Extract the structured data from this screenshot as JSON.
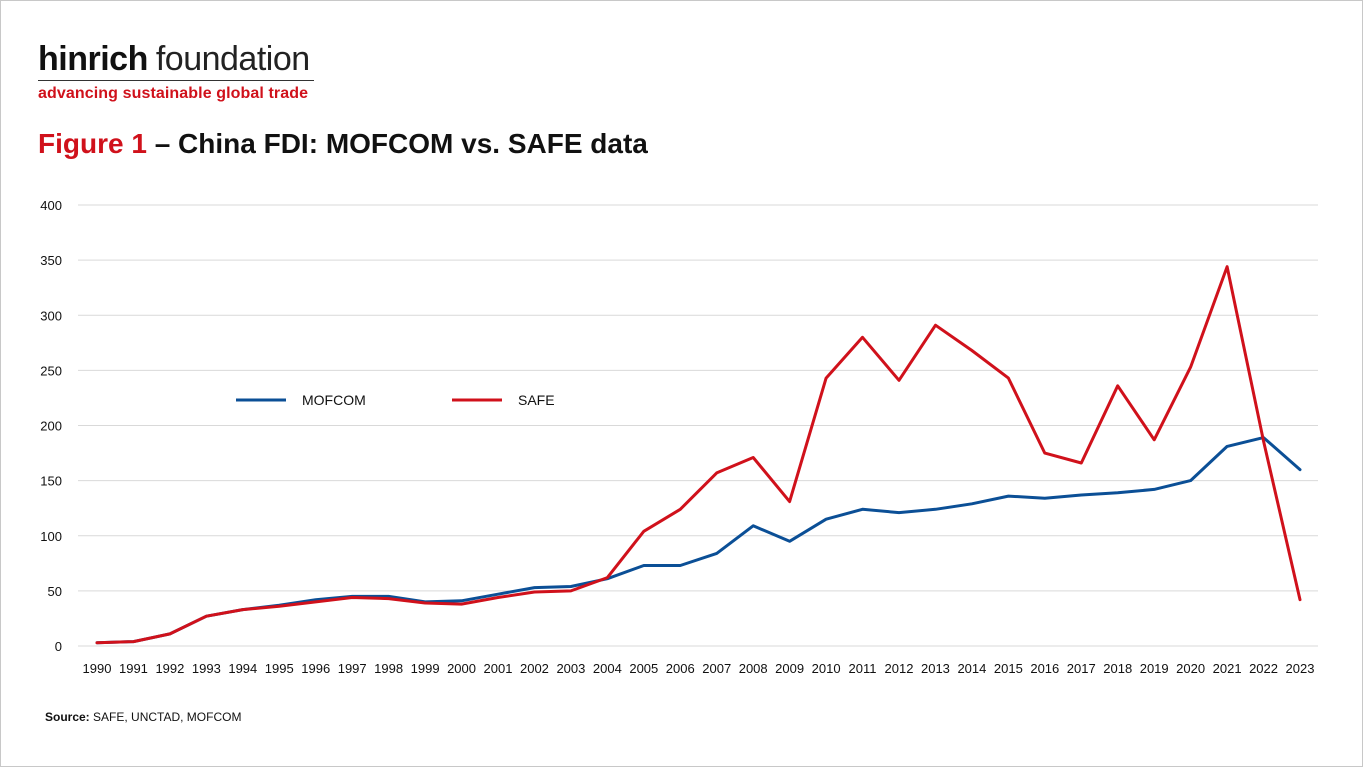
{
  "brand": {
    "name_bold": "hinrich",
    "name_light": "foundation",
    "tagline": "advancing sustainable global trade"
  },
  "figure": {
    "label": "Figure 1",
    "title": " – China FDI: MOFCOM vs. SAFE data"
  },
  "source": {
    "label": "Source:",
    "text": " SAFE, UNCTAD, MOFCOM"
  },
  "colors": {
    "mofcom": "#0b4f96",
    "safe": "#d0111b",
    "grid": "#d9d9d9",
    "text": "#111111"
  },
  "chart_data": {
    "type": "line",
    "title": "",
    "xlabel": "",
    "ylabel": "",
    "ylim": [
      0,
      400
    ],
    "yticks": [
      0,
      50,
      100,
      150,
      200,
      250,
      300,
      350,
      400
    ],
    "grid": true,
    "legend": "center-left",
    "categories": [
      "1990",
      "1991",
      "1992",
      "1993",
      "1994",
      "1995",
      "1996",
      "1997",
      "1998",
      "1999",
      "2000",
      "2001",
      "2002",
      "2003",
      "2004",
      "2005",
      "2006",
      "2007",
      "2008",
      "2009",
      "2010",
      "2011",
      "2012",
      "2013",
      "2014",
      "2015",
      "2016",
      "2017",
      "2018",
      "2019",
      "2020",
      "2021",
      "2022",
      "2023"
    ],
    "series": [
      {
        "name": "MOFCOM",
        "color": "#0b4f96",
        "values": [
          3,
          4,
          11,
          27,
          33,
          37,
          42,
          45,
          45,
          40,
          41,
          47,
          53,
          54,
          61,
          73,
          73,
          84,
          109,
          95,
          115,
          124,
          121,
          124,
          129,
          136,
          134,
          137,
          139,
          142,
          150,
          181,
          189,
          160
        ]
      },
      {
        "name": "SAFE",
        "color": "#d0111b",
        "values": [
          3,
          4,
          11,
          27,
          33,
          36,
          40,
          44,
          43,
          39,
          38,
          44,
          49,
          50,
          62,
          104,
          124,
          157,
          171,
          131,
          243,
          280,
          241,
          291,
          268,
          243,
          175,
          166,
          236,
          187,
          253,
          344,
          186,
          42
        ]
      }
    ]
  }
}
